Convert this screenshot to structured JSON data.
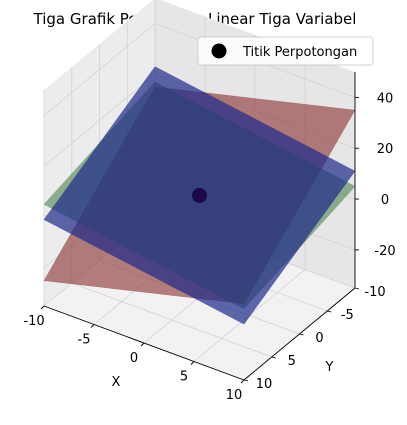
{
  "chart_data": {
    "type": "surface3d",
    "title": "Tiga Grafik Persamaan Linear Tiga Variabel",
    "xlabel": "X",
    "ylabel": "Y",
    "zlabel": "",
    "xlim": [
      -10,
      10
    ],
    "ylim": [
      -10,
      10
    ],
    "zlim": [
      -35,
      50
    ],
    "x_ticks": [
      -10,
      -5,
      0,
      5,
      10
    ],
    "y_ticks": [
      -10,
      -5,
      0,
      5,
      10
    ],
    "z_ticks": [
      -20,
      0,
      20,
      40
    ],
    "grid": true,
    "legend_position": "top-right",
    "legend": [
      {
        "label": "Titik Perpotongan",
        "marker": "circle",
        "color": "#000000"
      }
    ],
    "series": [
      {
        "plane_coefficients": {
          "a": 1.0,
          "b": -2.0,
          "c": 5.0
        },
        "color": "#8b2e2e",
        "opacity": 0.6
      },
      {
        "plane_coefficients": {
          "a": -0.6,
          "b": -0.6,
          "c": 5.0
        },
        "color": "#3e7a3e",
        "opacity": 0.55
      },
      {
        "plane_coefficients": {
          "a": -0.6,
          "b": -1.2,
          "c": 5.0
        },
        "color": "#1e2a8a",
        "opacity": 0.7
      }
    ],
    "intersection_point": {
      "x": 0,
      "y": 0,
      "z": 5,
      "color": "#1a0a4a"
    }
  }
}
